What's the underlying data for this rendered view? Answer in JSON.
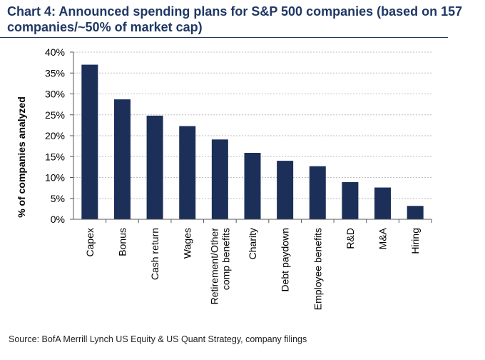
{
  "chart_data": {
    "type": "bar",
    "title": "Chart 4: Announced spending plans for S&P 500 companies (based on 157 companies/~50% of market cap)",
    "xlabel": "",
    "ylabel": "% of companies analyzed",
    "ylim": [
      0,
      40
    ],
    "yticks": [
      "0%",
      "5%",
      "10%",
      "15%",
      "20%",
      "25%",
      "30%",
      "35%",
      "40%"
    ],
    "ytick_values": [
      0,
      5,
      10,
      15,
      20,
      25,
      30,
      35,
      40
    ],
    "grid": true,
    "categories": [
      "Capex",
      "Bonus",
      "Cash return",
      "Wages",
      "Retirement/Other comp benefits",
      "Charity",
      "Debt paydown",
      "Employee benefits",
      "R&D",
      "M&A",
      "Hiring"
    ],
    "category_lines": [
      [
        "Capex"
      ],
      [
        "Bonus"
      ],
      [
        "Cash return"
      ],
      [
        "Wages"
      ],
      [
        "Retirement/Other",
        "comp benefits"
      ],
      [
        "Charity"
      ],
      [
        "Debt paydown"
      ],
      [
        "Employee benefits"
      ],
      [
        "R&D"
      ],
      [
        "M&A"
      ],
      [
        "Hiring"
      ]
    ],
    "values": [
      37,
      28.7,
      24.8,
      22.3,
      19.1,
      15.9,
      14,
      12.7,
      8.9,
      7.6,
      3.2
    ],
    "source": "Source: BofA Merrill Lynch US Equity & US Quant Strategy, company filings",
    "colors": {
      "bar": "#1b2f59",
      "title": "#1f3864",
      "grid": "#bfbfbf",
      "axis": "#595959",
      "text": "#000000"
    }
  }
}
